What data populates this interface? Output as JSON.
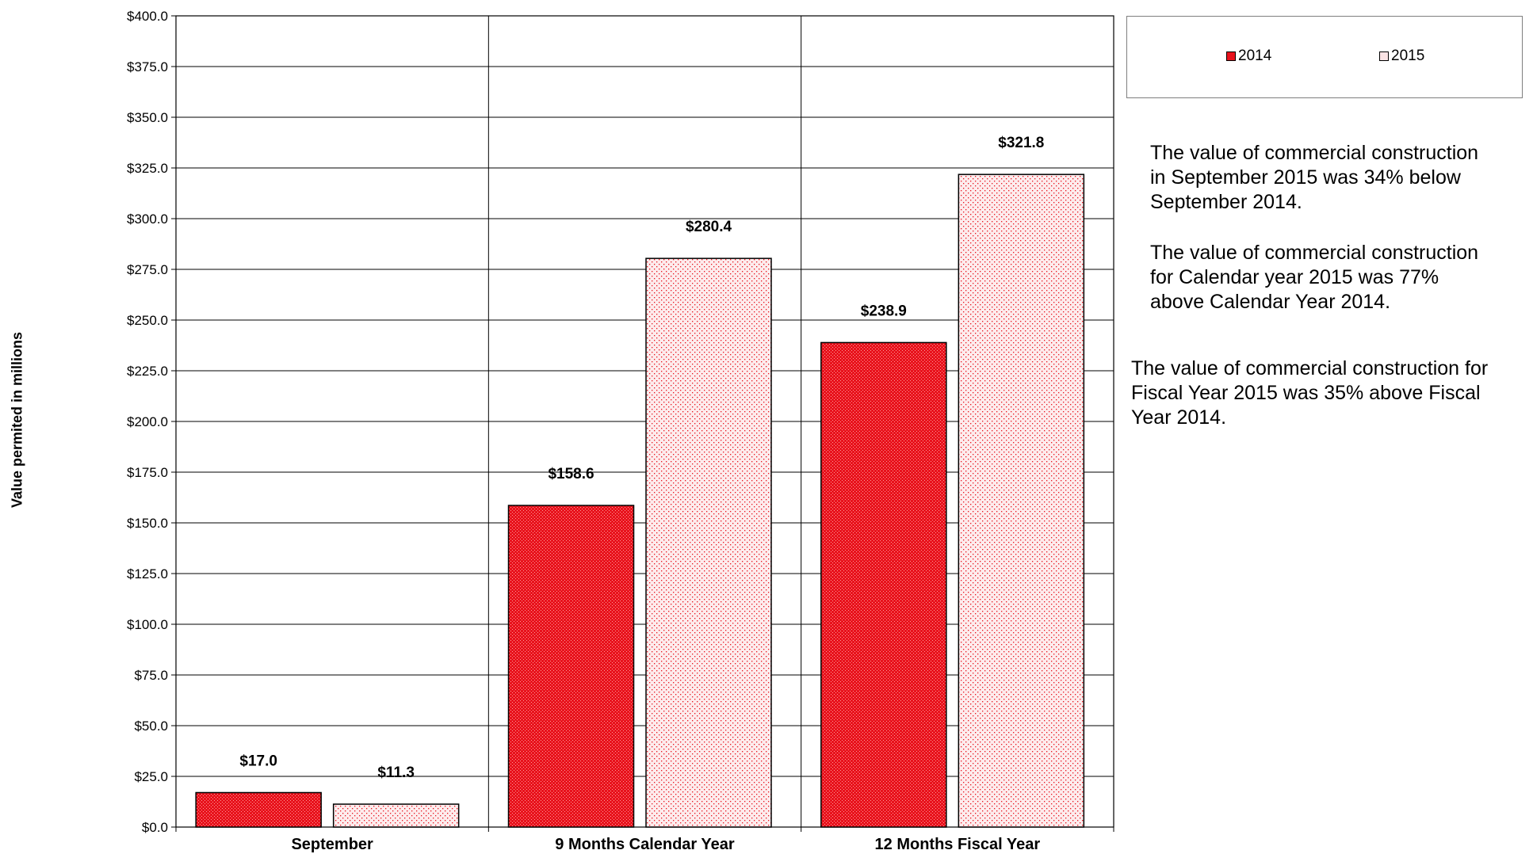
{
  "chart_data": {
    "type": "bar",
    "categories": [
      "September",
      "9 Months Calendar Year",
      "12 Months Fiscal Year"
    ],
    "series": [
      {
        "name": "2014",
        "values": [
          17.0,
          158.6,
          238.9
        ],
        "color": "#e8121c",
        "pattern": "dense red dots"
      },
      {
        "name": "2015",
        "values": [
          11.3,
          280.4,
          321.8
        ],
        "color": "#fbe3e4",
        "pattern": "sparse red dots on pale pink"
      }
    ],
    "data_labels": [
      [
        "$17.0",
        "$158.6",
        "$238.9"
      ],
      [
        "$11.3",
        "$280.4",
        "$321.8"
      ]
    ],
    "xlabel": "",
    "ylabel": "Value permited in millions",
    "ylim": [
      0,
      400
    ],
    "ytick_step": 25,
    "yticks": [
      "$0.0",
      "$25.0",
      "$50.0",
      "$75.0",
      "$100.0",
      "$125.0",
      "$150.0",
      "$175.0",
      "$200.0",
      "$225.0",
      "$250.0",
      "$275.0",
      "$300.0",
      "$325.0",
      "$350.0",
      "$375.0",
      "$400.0"
    ],
    "grid": true,
    "legend_position": "top-right",
    "title": ""
  },
  "legend": {
    "items": [
      "2014",
      "2015"
    ]
  },
  "annotations": {
    "text1": "The value of commercial construction\nin September 2015 was 34% below\nSeptember 2014.",
    "text2": "The value of commercial construction\nfor Calendar year 2015 was 77%\nabove  Calendar Year 2014.",
    "text3": "The value of commercial construction for\nFiscal Year 2015 was 35% above Fiscal\nYear 2014."
  }
}
